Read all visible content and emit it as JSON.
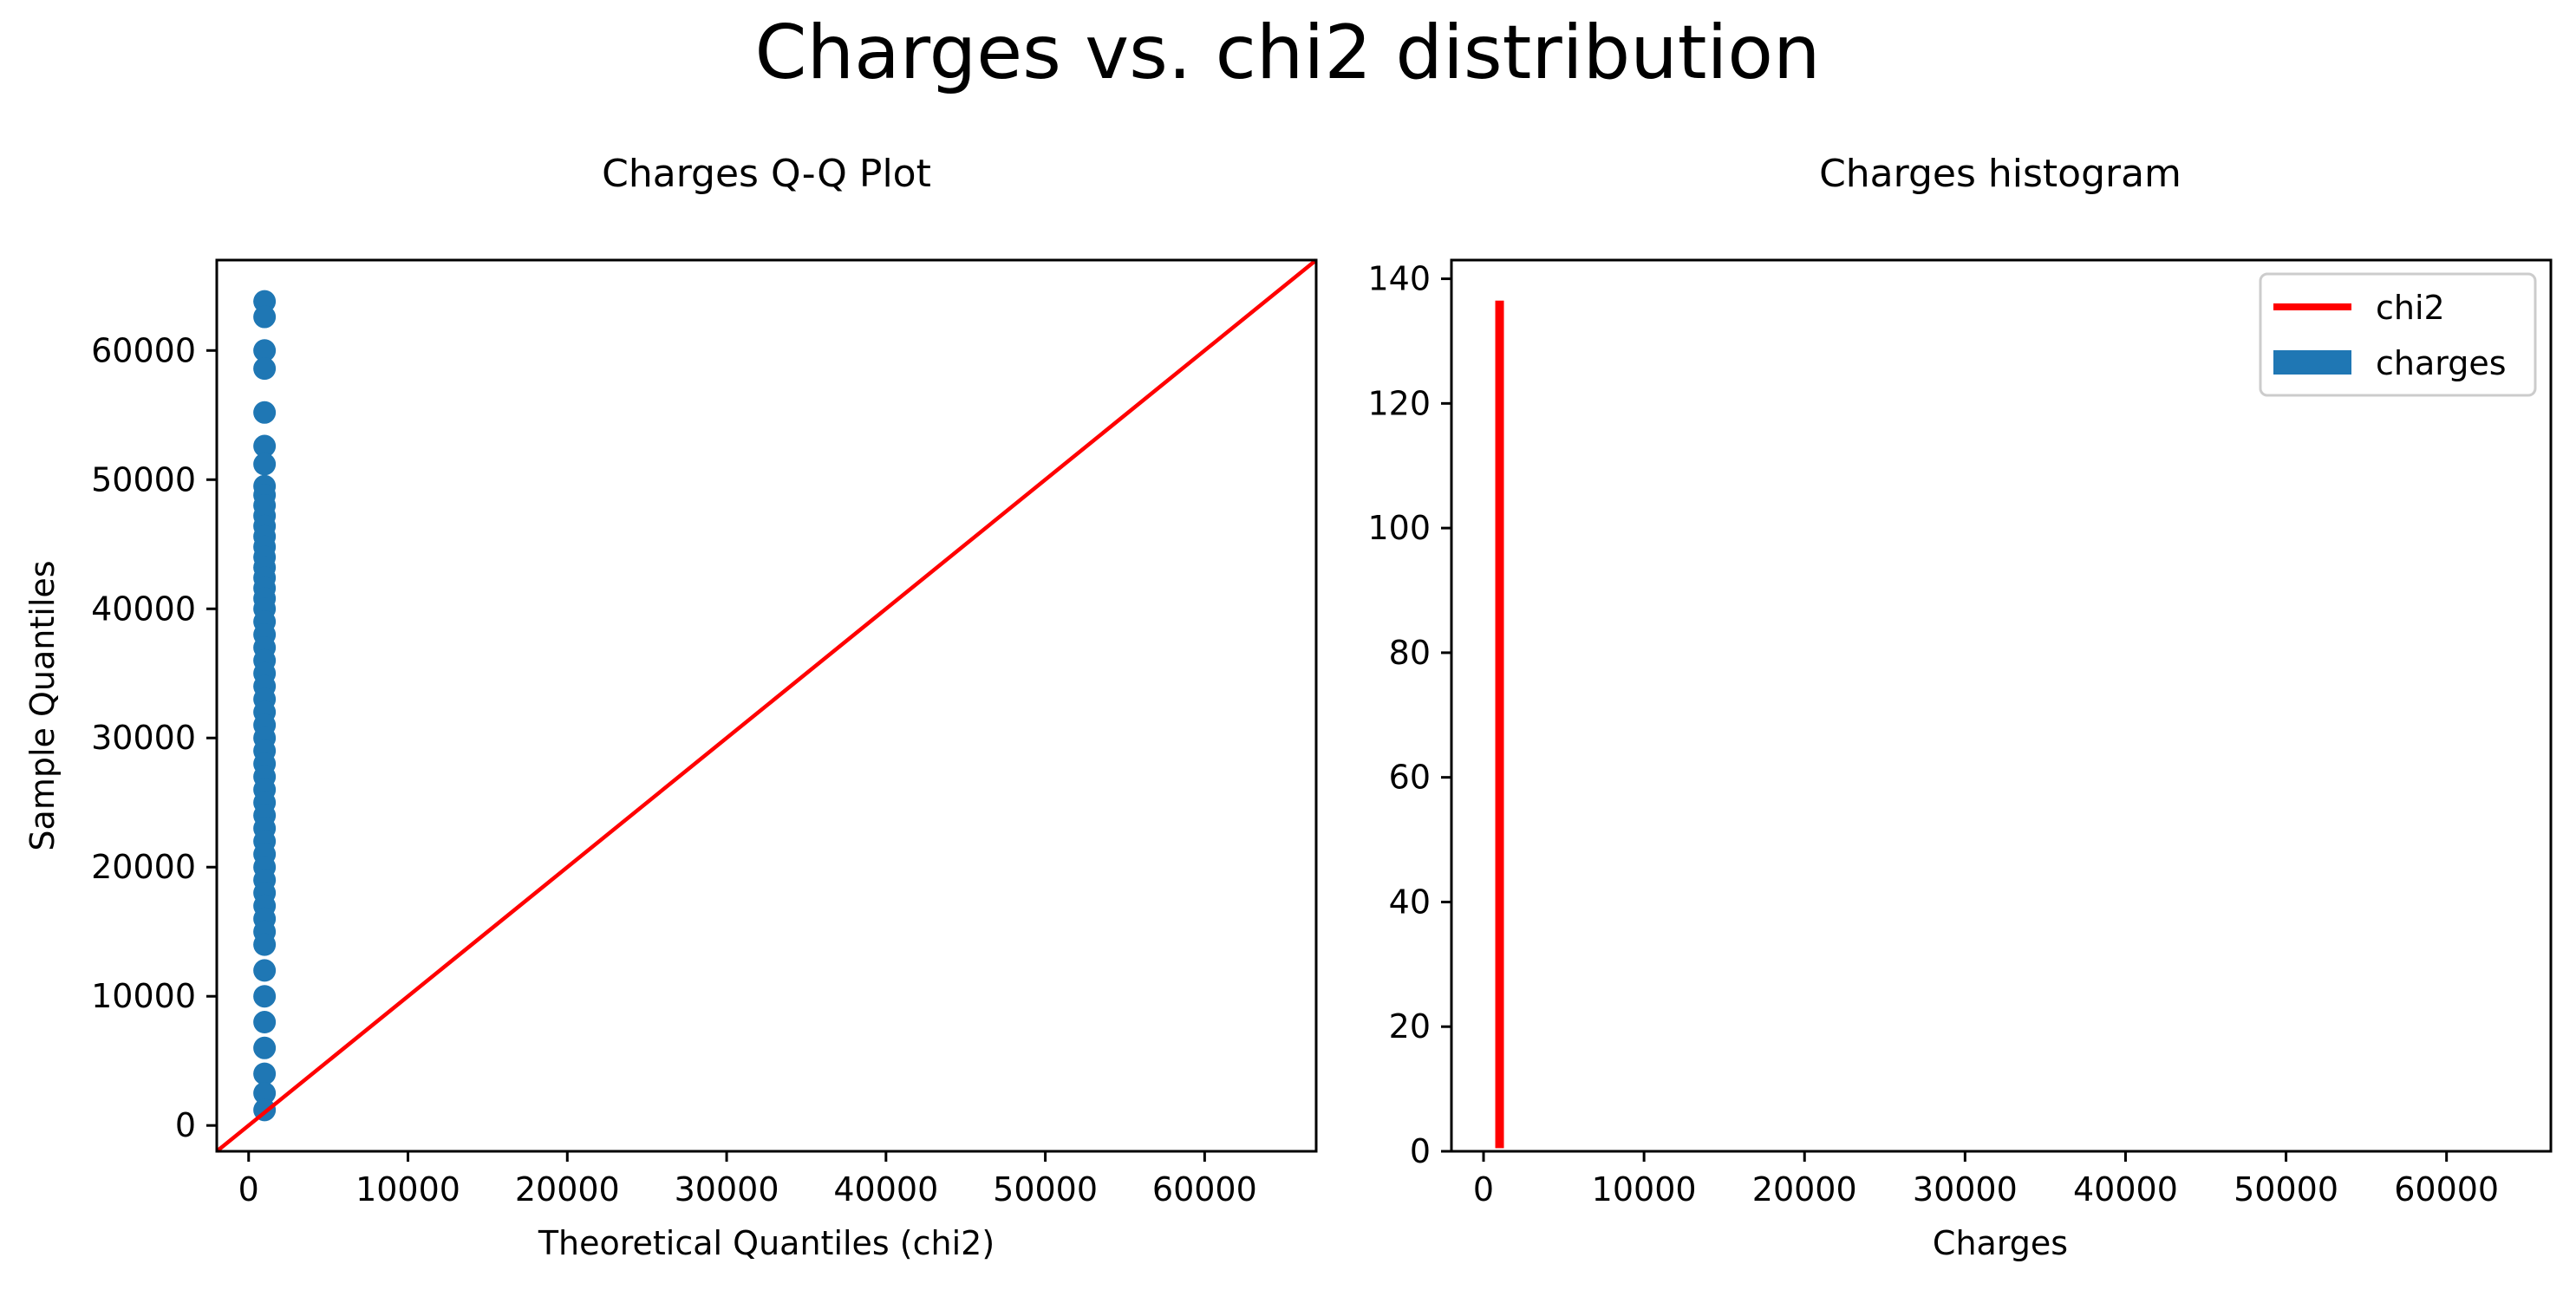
{
  "title": "Charges vs. chi2 distribution",
  "colors": {
    "points": "#1f77b4",
    "line": "#ff0000",
    "hist": "#1f77b4"
  },
  "chart_data": [
    {
      "type": "scatter",
      "title": "Charges Q-Q Plot",
      "xlabel": "Theoretical Quantiles (chi2)",
      "ylabel": "Sample Quantiles",
      "xlim": [
        -2000,
        67000
      ],
      "ylim": [
        -2000,
        67000
      ],
      "xticks": [
        0,
        10000,
        20000,
        30000,
        40000,
        50000,
        60000
      ],
      "yticks": [
        0,
        10000,
        20000,
        30000,
        40000,
        50000,
        60000
      ],
      "grid": false,
      "reference_line": {
        "name": "45-degree line",
        "from": [
          -2000,
          -2000
        ],
        "to": [
          67000,
          67000
        ]
      },
      "series": [
        {
          "x": [
            1000,
            1000,
            1000,
            1000,
            1000,
            1000,
            1000,
            1000,
            1000,
            1000,
            1000,
            1000,
            1000,
            1000,
            1000,
            1000,
            1000,
            1000,
            1000,
            1000,
            1000,
            1000,
            1000,
            1000,
            1000,
            1000,
            1000,
            1000,
            1000,
            1000,
            1000,
            1000,
            1000,
            1000,
            1000,
            1000,
            1000,
            1000,
            1000,
            1000,
            1000,
            1000,
            1000,
            1000,
            1000,
            1000,
            1000,
            1000,
            1000,
            1000,
            1000,
            1000,
            1000
          ],
          "y": [
            63800,
            62600,
            60000,
            58600,
            55200,
            52600,
            51200,
            49500,
            48800,
            48000,
            47200,
            46400,
            45600,
            44800,
            44000,
            43200,
            42400,
            41600,
            40800,
            40000,
            39000,
            38000,
            37000,
            36000,
            35000,
            34000,
            33000,
            32000,
            31000,
            30000,
            29000,
            28000,
            27000,
            26000,
            25000,
            24000,
            23000,
            22000,
            21000,
            20000,
            19000,
            18000,
            17000,
            16000,
            15000,
            14000,
            12000,
            10000,
            8000,
            6000,
            4000,
            2500,
            1200
          ]
        }
      ]
    },
    {
      "type": "bar",
      "title": "Charges histogram",
      "xlabel": "Charges",
      "ylabel": "",
      "xlim": [
        -2000,
        66500
      ],
      "ylim": [
        0,
        143
      ],
      "xticks": [
        0,
        10000,
        20000,
        30000,
        40000,
        50000,
        60000
      ],
      "yticks": [
        0,
        20,
        40,
        60,
        80,
        100,
        120,
        140
      ],
      "grid": false,
      "legend": {
        "placement": "top-right",
        "entries": [
          "chi2",
          "charges"
        ]
      },
      "series": [
        {
          "name": "chi2",
          "kind": "line",
          "x": [
            1000,
            1000
          ],
          "y": [
            0.5,
            136.5
          ]
        },
        {
          "name": "charges",
          "kind": "histogram",
          "values": []
        }
      ]
    }
  ]
}
